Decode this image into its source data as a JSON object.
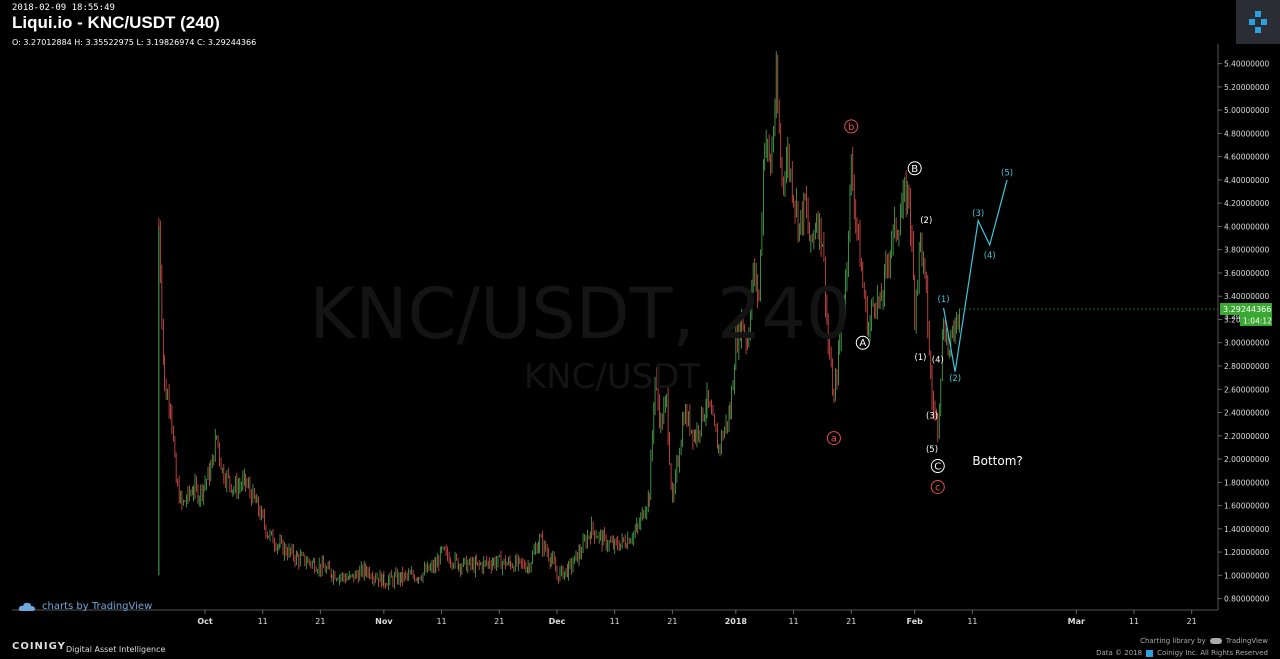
{
  "header": {
    "timestamp": "2018-02-09 18:55:49",
    "title": "Liqui.io - KNC/USDT (240)",
    "ohlc": "O: 3.27012884 H: 3.35522975 L: 3.19826974 C: 3.29244366"
  },
  "watermark": {
    "main": "KNC/USDT, 240",
    "sub": "KNC/USDT"
  },
  "price_box": {
    "price": "3.29244366",
    "countdown": "1:04:12",
    "hidden_tick": "3.20"
  },
  "credits": {
    "tradingview": "charts by TradingView",
    "brand": "COINIGY",
    "tagline": "Digital Asset Intelligence",
    "charting_library": "Charting library by",
    "tv_name": "TradingView",
    "copyright": "Data © 2018",
    "company": "Coinigy Inc. All Rights Reserved"
  },
  "colors": {
    "up": "#4caf50",
    "down": "#e0504a",
    "projection": "#3ec6d8",
    "wave_label": "#ffffff",
    "abc_label": "#e0504a",
    "price_tag": "#3aa832"
  },
  "chart_data": {
    "type": "candlestick",
    "title": "Liqui.io - KNC/USDT (240)",
    "ylim": [
      0.7,
      5.5
    ],
    "y_ticks": [
      0.8,
      1.0,
      1.2,
      1.4,
      1.6,
      1.8,
      2.0,
      2.2,
      2.4,
      2.6,
      2.8,
      3.0,
      3.2,
      3.4,
      3.6,
      3.8,
      4.0,
      4.2,
      4.4,
      4.6,
      4.8,
      5.0,
      5.2,
      5.4
    ],
    "y_tick_labels": [
      "0.80000000",
      "1.00000000",
      "1.20000000",
      "1.40000000",
      "1.60000000",
      "1.80000000",
      "2.00000000",
      "2.20000000",
      "2.40000000",
      "2.60000000",
      "2.80000000",
      "3.00000000",
      "3.20000000",
      "3.40000000",
      "3.60000000",
      "3.80000000",
      "4.00000000",
      "4.20000000",
      "4.40000000",
      "4.60000000",
      "4.80000000",
      "5.00000000",
      "5.20000000",
      "5.40000000"
    ],
    "x_ticks": [
      {
        "date": "2017-10-01",
        "label": "Oct"
      },
      {
        "date": "2017-10-11",
        "label": "11"
      },
      {
        "date": "2017-10-21",
        "label": "21"
      },
      {
        "date": "2017-11-01",
        "label": "Nov"
      },
      {
        "date": "2017-11-11",
        "label": "11"
      },
      {
        "date": "2017-11-21",
        "label": "21"
      },
      {
        "date": "2017-12-01",
        "label": "Dec"
      },
      {
        "date": "2017-12-11",
        "label": "11"
      },
      {
        "date": "2017-12-21",
        "label": "21"
      },
      {
        "date": "2018-01-01",
        "label": "2018"
      },
      {
        "date": "2018-01-11",
        "label": "11"
      },
      {
        "date": "2018-01-21",
        "label": "21"
      },
      {
        "date": "2018-02-01",
        "label": "Feb"
      },
      {
        "date": "2018-02-11",
        "label": "11"
      },
      {
        "date": "2018-03-01",
        "label": "Mar"
      },
      {
        "date": "2018-03-11",
        "label": "11"
      },
      {
        "date": "2018-03-21",
        "label": "21"
      }
    ],
    "price_path": [
      [
        "2017-09-23",
        1.0
      ],
      [
        "2017-09-23",
        4.0
      ],
      [
        "2017-09-24",
        2.6
      ],
      [
        "2017-09-25",
        2.5
      ],
      [
        "2017-09-26",
        1.8
      ],
      [
        "2017-09-27",
        1.6
      ],
      [
        "2017-09-29",
        1.75
      ],
      [
        "2017-09-30",
        1.7
      ],
      [
        "2017-10-01",
        1.8
      ],
      [
        "2017-10-02",
        1.9
      ],
      [
        "2017-10-03",
        2.2
      ],
      [
        "2017-10-04",
        1.9
      ],
      [
        "2017-10-06",
        1.75
      ],
      [
        "2017-10-08",
        1.8
      ],
      [
        "2017-10-10",
        1.6
      ],
      [
        "2017-10-12",
        1.35
      ],
      [
        "2017-10-14",
        1.25
      ],
      [
        "2017-10-17",
        1.15
      ],
      [
        "2017-10-20",
        1.1
      ],
      [
        "2017-10-23",
        1.02
      ],
      [
        "2017-10-26",
        0.97
      ],
      [
        "2017-10-29",
        1.05
      ],
      [
        "2017-11-01",
        0.95
      ],
      [
        "2017-11-04",
        0.98
      ],
      [
        "2017-11-07",
        1.0
      ],
      [
        "2017-11-10",
        1.08
      ],
      [
        "2017-11-11",
        1.2
      ],
      [
        "2017-11-14",
        1.1
      ],
      [
        "2017-11-17",
        1.08
      ],
      [
        "2017-11-20",
        1.12
      ],
      [
        "2017-11-23",
        1.1
      ],
      [
        "2017-11-26",
        1.08
      ],
      [
        "2017-11-28",
        1.3
      ],
      [
        "2017-11-30",
        1.15
      ],
      [
        "2017-12-01",
        1.0
      ],
      [
        "2017-12-03",
        1.05
      ],
      [
        "2017-12-05",
        1.2
      ],
      [
        "2017-12-07",
        1.4
      ],
      [
        "2017-12-09",
        1.3
      ],
      [
        "2017-12-11",
        1.25
      ],
      [
        "2017-12-13",
        1.3
      ],
      [
        "2017-12-15",
        1.4
      ],
      [
        "2017-12-17",
        1.7
      ],
      [
        "2017-12-18",
        2.7
      ],
      [
        "2017-12-19",
        2.3
      ],
      [
        "2017-12-20",
        2.5
      ],
      [
        "2017-12-21",
        1.6
      ],
      [
        "2017-12-22",
        2.0
      ],
      [
        "2017-12-23",
        2.4
      ],
      [
        "2017-12-25",
        2.2
      ],
      [
        "2017-12-27",
        2.5
      ],
      [
        "2017-12-29",
        2.1
      ],
      [
        "2017-12-31",
        2.4
      ],
      [
        "2018-01-01",
        3.0
      ],
      [
        "2018-01-02",
        3.2
      ],
      [
        "2018-01-03",
        3.0
      ],
      [
        "2018-01-04",
        3.6
      ],
      [
        "2018-01-05",
        3.4
      ],
      [
        "2018-01-06",
        4.8
      ],
      [
        "2018-01-07",
        4.5
      ],
      [
        "2018-01-08",
        5.2
      ],
      [
        "2018-01-09",
        4.4
      ],
      [
        "2018-01-10",
        4.6
      ],
      [
        "2018-01-11",
        4.3
      ],
      [
        "2018-01-12",
        4.0
      ],
      [
        "2018-01-13",
        4.2
      ],
      [
        "2018-01-14",
        3.8
      ],
      [
        "2018-01-15",
        4.1
      ],
      [
        "2018-01-16",
        3.9
      ],
      [
        "2018-01-17",
        3.0
      ],
      [
        "2018-01-18",
        2.5
      ],
      [
        "2018-01-19",
        3.0
      ],
      [
        "2018-01-20",
        3.5
      ],
      [
        "2018-01-21",
        4.5
      ],
      [
        "2018-01-22",
        4.0
      ],
      [
        "2018-01-23",
        3.5
      ],
      [
        "2018-01-24",
        3.1
      ],
      [
        "2018-01-25",
        3.4
      ],
      [
        "2018-01-26",
        3.3
      ],
      [
        "2018-01-27",
        3.6
      ],
      [
        "2018-01-28",
        3.9
      ],
      [
        "2018-01-29",
        4.0
      ],
      [
        "2018-01-30",
        4.2
      ],
      [
        "2018-01-31",
        4.3
      ],
      [
        "2018-02-01",
        3.3
      ],
      [
        "2018-02-02",
        3.9
      ],
      [
        "2018-02-03",
        3.4
      ],
      [
        "2018-02-04",
        2.5
      ],
      [
        "2018-02-05",
        2.3
      ],
      [
        "2018-02-06",
        3.2
      ],
      [
        "2018-02-07",
        2.9
      ],
      [
        "2018-02-08",
        3.2
      ],
      [
        "2018-02-09",
        3.29
      ]
    ],
    "wave_labels": [
      {
        "date": "2018-01-18",
        "price": 2.18,
        "text": "a",
        "style": "red"
      },
      {
        "date": "2018-01-21",
        "price": 4.86,
        "text": "b",
        "style": "red"
      },
      {
        "date": "2018-02-05",
        "price": 1.76,
        "text": "c",
        "style": "red"
      },
      {
        "date": "2018-01-23",
        "price": 3.0,
        "text": "A",
        "style": "white"
      },
      {
        "date": "2018-02-01",
        "price": 4.5,
        "text": "B",
        "style": "white"
      },
      {
        "date": "2018-02-05",
        "price": 1.94,
        "text": "C",
        "style": "white"
      },
      {
        "date": "2018-02-02",
        "price": 2.88,
        "text": "(1)",
        "style": "white"
      },
      {
        "date": "2018-02-03",
        "price": 4.06,
        "text": "(2)",
        "style": "white"
      },
      {
        "date": "2018-02-04",
        "price": 2.38,
        "text": "(3)",
        "style": "white"
      },
      {
        "date": "2018-02-05",
        "price": 2.86,
        "text": "(4)",
        "style": "white"
      },
      {
        "date": "2018-02-04",
        "price": 2.09,
        "text": "(5)",
        "style": "white"
      },
      {
        "date": "2018-02-06",
        "price": 3.38,
        "text": "(1)",
        "style": "cyan"
      },
      {
        "date": "2018-02-08",
        "price": 2.7,
        "text": "(2)",
        "style": "cyan"
      },
      {
        "date": "2018-02-12",
        "price": 4.12,
        "text": "(3)",
        "style": "cyan"
      },
      {
        "date": "2018-02-14",
        "price": 3.76,
        "text": "(4)",
        "style": "cyan"
      },
      {
        "date": "2018-02-17",
        "price": 4.47,
        "text": "(5)",
        "style": "cyan"
      }
    ],
    "projection": [
      [
        "2018-02-06",
        3.3
      ],
      [
        "2018-02-08",
        2.75
      ],
      [
        "2018-02-12",
        4.05
      ],
      [
        "2018-02-14",
        3.84
      ],
      [
        "2018-02-17",
        4.4
      ]
    ],
    "annotation": {
      "date": "2018-02-11",
      "price": 1.95,
      "text": "Bottom?"
    }
  }
}
